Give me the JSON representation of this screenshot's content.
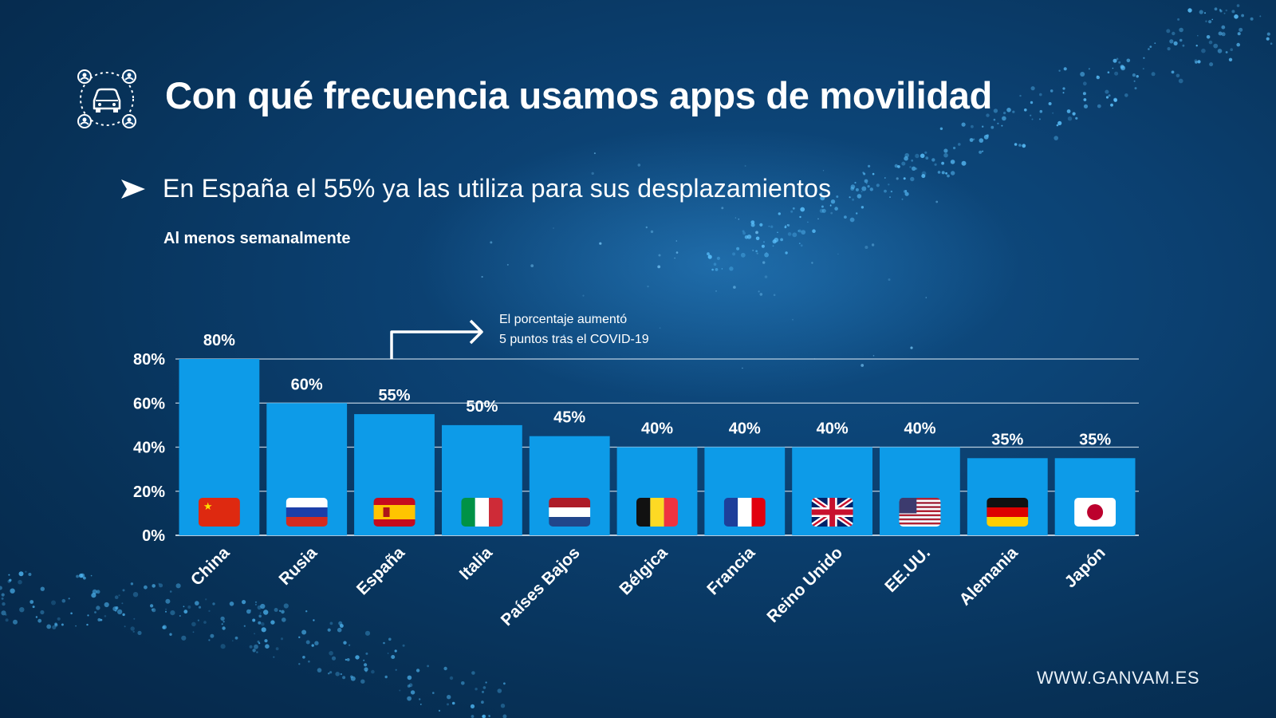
{
  "header": {
    "title": "Con qué frecuencia usamos apps de movilidad",
    "subtitle": "En España el 55%  ya las utiliza para sus desplazamientos",
    "note": "Al menos semanalmente",
    "logo_icon": "car-sharing-icon",
    "bullet_icon": "arrow-right-icon"
  },
  "annotation": {
    "line1": "El porcentaje aumentó",
    "line2": "5 puntos tras el COVID-19",
    "icon": "bent-arrow-icon"
  },
  "footer": {
    "url": "WWW.GANVAM.ES"
  },
  "colors": {
    "bar": "#0d9be8",
    "background": "#0b3f6f",
    "gridline": "#d8e6f2"
  },
  "chart_data": {
    "type": "bar",
    "title": "",
    "xlabel": "",
    "ylabel": "",
    "ylim": [
      0,
      80
    ],
    "yticks": [
      "0%",
      "20%",
      "40%",
      "60%",
      "80%"
    ],
    "grid": true,
    "categories": [
      "China",
      "Rusia",
      "España",
      "Italia",
      "Países Bajos",
      "Bélgica",
      "Francia",
      "Reino Unido",
      "EE.UU.",
      "Alemania",
      "Japón"
    ],
    "values": [
      80,
      60,
      55,
      50,
      45,
      40,
      40,
      40,
      40,
      35,
      35
    ],
    "value_labels": [
      "80%",
      "60%",
      "55%",
      "50%",
      "45%",
      "40%",
      "40%",
      "40%",
      "40%",
      "35%",
      "35%"
    ],
    "flags": [
      "china-flag",
      "russia-flag",
      "spain-flag",
      "italy-flag",
      "netherlands-flag",
      "belgium-flag",
      "france-flag",
      "uk-flag",
      "usa-flag",
      "germany-flag",
      "japan-flag"
    ]
  }
}
